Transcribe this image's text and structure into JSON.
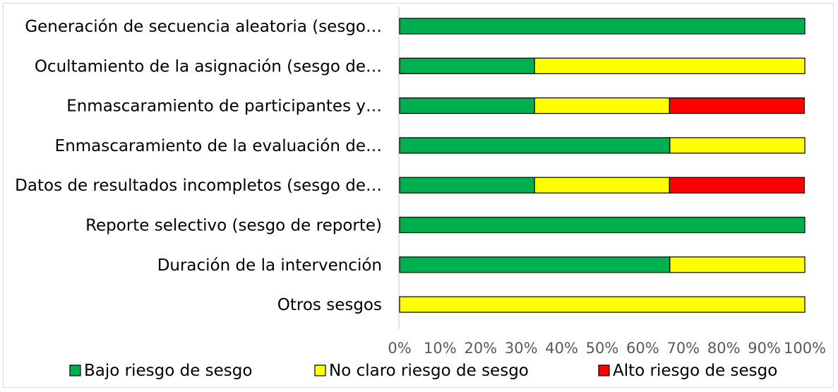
{
  "chart_data": {
    "type": "bar",
    "orientation": "horizontal",
    "stacked": true,
    "categories": [
      "Generación de secuencia aleatoria (sesgo…",
      "Ocultamiento de la asignación (sesgo de…",
      "Enmascaramiento de participantes y…",
      "Enmascaramiento de la evaluación de…",
      "Datos de resultados incompletos (sesgo de…",
      "Reporte selectivo (sesgo de reporte)",
      "Duración de la intervención",
      "Otros sesgos"
    ],
    "series": [
      {
        "name": "Bajo riesgo de sesgo",
        "color": "#00b050",
        "values": [
          100,
          33.3,
          33.3,
          66.7,
          33.3,
          100,
          66.7,
          0
        ]
      },
      {
        "name": "No claro riesgo de sesgo",
        "color": "#ffff00",
        "values": [
          0,
          66.7,
          33.3,
          33.3,
          33.3,
          0,
          33.3,
          100
        ]
      },
      {
        "name": "Alto riesgo de sesgo",
        "color": "#ff0000",
        "values": [
          0,
          0,
          33.3,
          0,
          33.3,
          0,
          0,
          0
        ]
      }
    ],
    "x_ticks": [
      "0%",
      "10%",
      "20%",
      "30%",
      "40%",
      "50%",
      "60%",
      "70%",
      "80%",
      "90%",
      "100%"
    ],
    "xlim": [
      0,
      100
    ],
    "grid": false,
    "legend_position": "bottom",
    "title": "",
    "xlabel": "",
    "ylabel": ""
  }
}
